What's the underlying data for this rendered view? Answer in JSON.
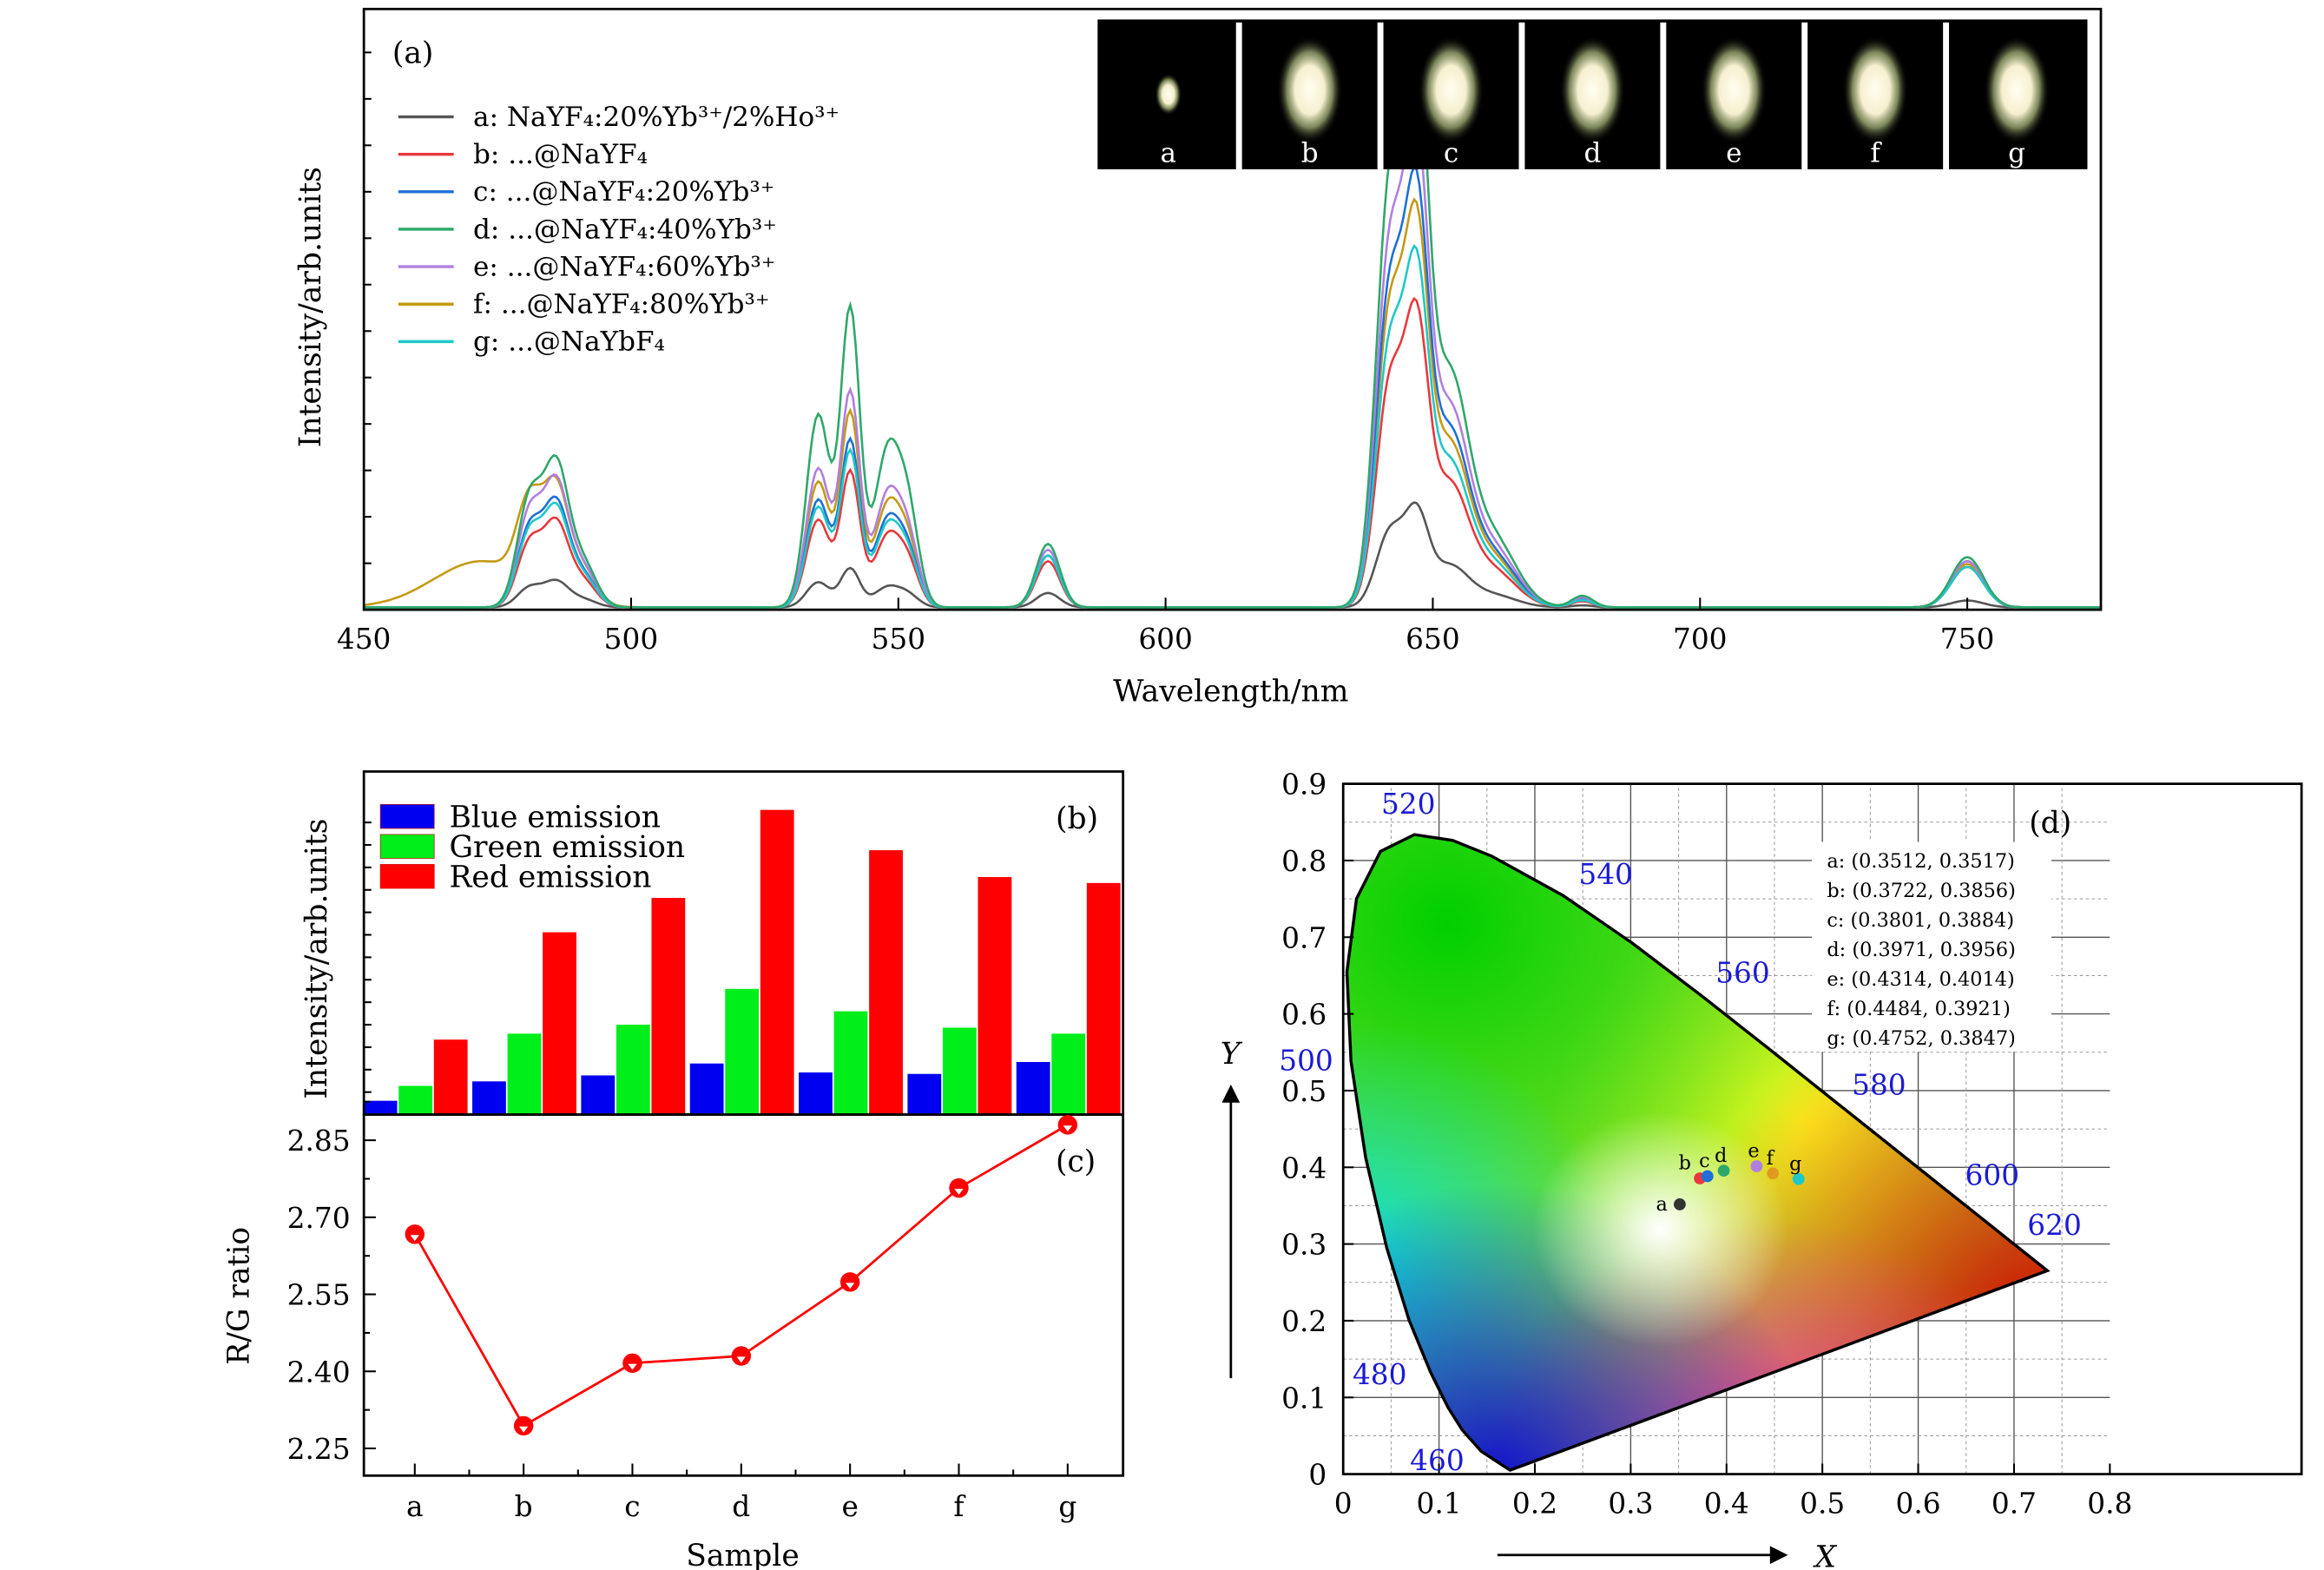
{
  "chart_data": [
    {
      "id": "a",
      "type": "line",
      "panel_label": "(a)",
      "xlabel": "Wavelength/nm",
      "ylabel": "Intensity/arb.units",
      "xlim": [
        450,
        775
      ],
      "ylim": [
        0,
        1.04
      ],
      "xticks": [
        450,
        500,
        550,
        600,
        650,
        700,
        750
      ],
      "series": [
        {
          "key": "a",
          "name": "a: NaYF₄:20%Yb³⁺/2%Ho³⁺",
          "color": "#555555",
          "bands": {
            "485": 0.045,
            "540": 0.07,
            "578": 0.025,
            "645": 0.18,
            "750": 0.012,
            "470": 0
          }
        },
        {
          "key": "b",
          "name": "b: ...@NaYF₄",
          "color": "#e8383d",
          "bands": {
            "485": 0.146,
            "540": 0.244,
            "578": 0.08,
            "645": 0.53,
            "750": 0.07,
            "470": 0
          }
        },
        {
          "key": "c",
          "name": "c: ...@NaYF₄:20%Yb³⁺",
          "color": "#1f6fd6",
          "bands": {
            "485": 0.18,
            "540": 0.3,
            "578": 0.09,
            "645": 0.756,
            "750": 0.08,
            "470": 0
          }
        },
        {
          "key": "d",
          "name": "d: ...@NaYF₄:40%Yb³⁺",
          "color": "#2ea86a",
          "bands": {
            "485": 0.247,
            "540": 0.537,
            "578": 0.11,
            "645": 1.0,
            "750": 0.087,
            "470": 0
          }
        },
        {
          "key": "e",
          "name": "e: ...@NaYF₄:60%Yb³⁺",
          "color": "#b07fe0",
          "bands": {
            "485": 0.216,
            "540": 0.387,
            "578": 0.1,
            "645": 0.854,
            "750": 0.08,
            "470": 0
          }
        },
        {
          "key": "f",
          "name": "f: ...@NaYF₄:80%Yb³⁺",
          "color": "#c49a14",
          "bands": {
            "485": 0.19,
            "540": 0.35,
            "578": 0.09,
            "645": 0.7,
            "750": 0.075,
            "470": 0.08
          }
        },
        {
          "key": "g",
          "name": "g: ...@NaYbF₄",
          "color": "#1fc8c8",
          "bands": {
            "485": 0.17,
            "540": 0.28,
            "578": 0.09,
            "645": 0.62,
            "750": 0.07,
            "470": 0
          }
        }
      ],
      "inset_labels": [
        "a",
        "b",
        "c",
        "d",
        "e",
        "f",
        "g"
      ]
    },
    {
      "id": "b",
      "type": "bar",
      "panel_label": "(b)",
      "ylabel": "Intensity/arb.units",
      "categories": [
        "a",
        "b",
        "c",
        "d",
        "e",
        "f",
        "g"
      ],
      "ylim": [
        0,
        230
      ],
      "series": [
        {
          "name": "Blue emission",
          "color": "#0000f0",
          "values": [
            9,
            22,
            26,
            34,
            28,
            27,
            35
          ]
        },
        {
          "name": "Green emission",
          "color": "#00ee1a",
          "values": [
            19,
            54,
            60,
            84,
            69,
            58,
            54
          ]
        },
        {
          "name": "Red emission",
          "color": "#ff0000",
          "values": [
            50,
            122,
            145,
            204,
            177,
            159,
            155
          ]
        }
      ]
    },
    {
      "id": "c",
      "type": "line",
      "panel_label": "(c)",
      "xlabel": "Sample",
      "ylabel": "R/G ratio",
      "categories": [
        "a",
        "b",
        "c",
        "d",
        "e",
        "f",
        "g"
      ],
      "values": [
        2.667,
        2.294,
        2.416,
        2.43,
        2.574,
        2.757,
        2.88
      ],
      "ylim": [
        2.197,
        2.9
      ],
      "yticks": [
        "2.25",
        "2.40",
        "2.55",
        "2.70",
        "2.85"
      ],
      "color": "#ff0000"
    },
    {
      "id": "d",
      "type": "scatter",
      "panel_label": "(d)",
      "xlabel": "X",
      "ylabel": "Y",
      "xlim": [
        0,
        0.8
      ],
      "ylim": [
        0,
        0.9
      ],
      "xticks": [
        "0",
        "0.1",
        "0.2",
        "0.3",
        "0.4",
        "0.5",
        "0.6",
        "0.7",
        "0.8"
      ],
      "yticks": [
        "0",
        "0.1",
        "0.2",
        "0.3",
        "0.4",
        "0.5",
        "0.6",
        "0.7",
        "0.8",
        "0.9"
      ],
      "wavelength_labels": [
        {
          "text": "460",
          "x": 0.14,
          "y": 0.025
        },
        {
          "text": "480",
          "x": 0.091,
          "y": 0.133
        },
        {
          "text": "500",
          "x": 0.008,
          "y": 0.538
        },
        {
          "text": "520",
          "x": 0.074,
          "y": 0.834
        },
        {
          "text": "540",
          "x": 0.23,
          "y": 0.754
        },
        {
          "text": "560",
          "x": 0.373,
          "y": 0.625
        },
        {
          "text": "580",
          "x": 0.512,
          "y": 0.487
        },
        {
          "text": "600",
          "x": 0.627,
          "y": 0.373
        },
        {
          "text": "620",
          "x": 0.692,
          "y": 0.308
        }
      ],
      "points": [
        {
          "label": "a",
          "x": 0.3512,
          "y": 0.3517,
          "color": "#333333",
          "text": "a: (0.3512, 0.3517)"
        },
        {
          "label": "b",
          "x": 0.3722,
          "y": 0.3856,
          "color": "#e8383d",
          "text": "b: (0.3722, 0.3856)"
        },
        {
          "label": "c",
          "x": 0.3801,
          "y": 0.3884,
          "color": "#1f6fd6",
          "text": "c: (0.3801, 0.3884)"
        },
        {
          "label": "d",
          "x": 0.3971,
          "y": 0.3956,
          "color": "#2ea86a",
          "text": "d: (0.3971, 0.3956)"
        },
        {
          "label": "e",
          "x": 0.4314,
          "y": 0.4014,
          "color": "#b07fe0",
          "text": "e: (0.4314, 0.4014)"
        },
        {
          "label": "f",
          "x": 0.4484,
          "y": 0.3921,
          "color": "#e09a20",
          "text": "f:  (0.4484, 0.3921)"
        },
        {
          "label": "g",
          "x": 0.4752,
          "y": 0.3847,
          "color": "#1fc8c8",
          "text": "g: (0.4752, 0.3847)"
        }
      ]
    }
  ]
}
